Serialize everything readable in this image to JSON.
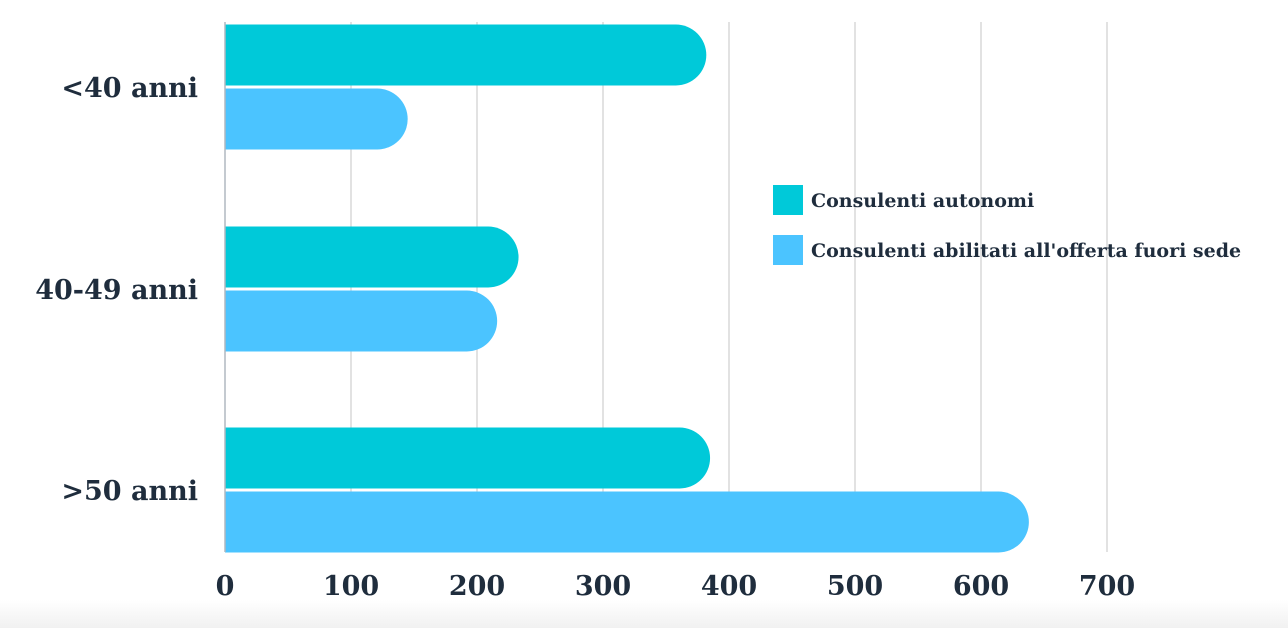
{
  "chart_data": {
    "type": "bar",
    "orientation": "horizontal",
    "categories": [
      "<40 anni",
      "40-49 anni",
      ">50 anni"
    ],
    "series": [
      {
        "name": "Consulenti autonomi",
        "values": [
          382,
          233,
          385
        ],
        "color": "#00c9d9"
      },
      {
        "name": "Consulenti abilitati all'offerta fuori sede",
        "values": [
          145,
          216,
          638
        ],
        "color": "#4bc4ff"
      }
    ],
    "xlim": [
      0,
      700
    ],
    "xticks": [
      0,
      100,
      200,
      300,
      400,
      500,
      600,
      700
    ],
    "grid": true,
    "legend": "right",
    "colors": {
      "grid": "#d9d9d9",
      "axis": "#b0b8c0",
      "text": "#1f2d3d"
    }
  }
}
